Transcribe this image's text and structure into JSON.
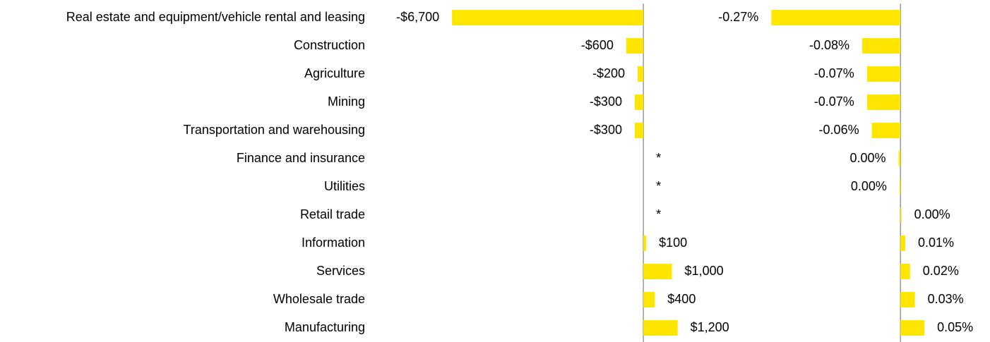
{
  "chart_data": {
    "type": "bar",
    "orientation": "horizontal",
    "categories": [
      "Real estate and equipment/vehicle rental and leasing",
      "Construction",
      "Agriculture",
      "Mining",
      "Transportation and warehousing",
      "Finance and insurance",
      "Utilities",
      "Retail trade",
      "Information",
      "Services",
      "Wholesale trade",
      "Manufacturing"
    ],
    "series": [
      {
        "color": "#ffe600",
        "xlim": [
          -7000,
          2000
        ],
        "values": [
          -6700,
          -600,
          -200,
          -300,
          -300,
          0,
          0,
          0,
          100,
          1000,
          400,
          1200
        ],
        "value_labels": [
          "-$6,700",
          "-$600",
          "-$200",
          "-$300",
          "-$300",
          "*",
          "*",
          "*",
          "$100",
          "$1,000",
          "$400",
          "$1,200"
        ]
      },
      {
        "color": "#ffe600",
        "xlim": [
          -0.3,
          0.1
        ],
        "values": [
          -0.27,
          -0.08,
          -0.07,
          -0.07,
          -0.06,
          -0.004,
          -0.002,
          0.002,
          0.01,
          0.02,
          0.03,
          0.05
        ],
        "value_labels": [
          "-0.27%",
          "-0.08%",
          "-0.07%",
          "-0.07%",
          "-0.06%",
          "0.00%",
          "0.00%",
          "0.00%",
          "0.01%",
          "0.02%",
          "0.03%",
          "0.05%"
        ]
      }
    ]
  }
}
